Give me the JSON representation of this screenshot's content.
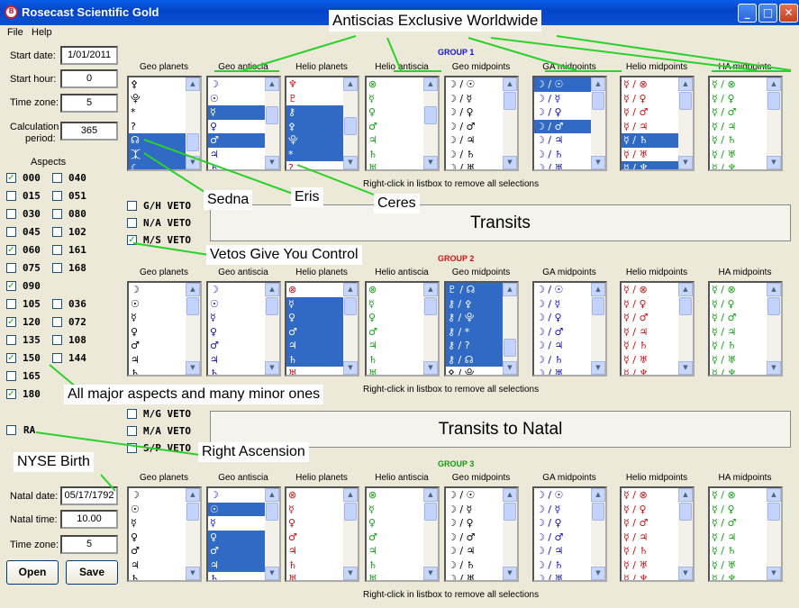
{
  "window": {
    "title": "Rosecast Scientific Gold",
    "icon_glyph": "8"
  },
  "menu": [
    {
      "label": "File"
    },
    {
      "label": "Help"
    }
  ],
  "left_panel": {
    "start_date_label": "Start date:",
    "start_date": "1/01/2011",
    "start_hour_label": "Start hour:",
    "start_hour": "0",
    "time_zone_label": "Time zone:",
    "time_zone": "5",
    "calc_period_label_1": "Calculation",
    "calc_period_label_2": "period:",
    "calc_period": "365",
    "aspects_label": "Aspects",
    "aspects": [
      {
        "label": "000",
        "checked": true
      },
      {
        "label": "040",
        "checked": false
      },
      {
        "label": "015",
        "checked": false
      },
      {
        "label": "051",
        "checked": false
      },
      {
        "label": "030",
        "checked": false
      },
      {
        "label": "080",
        "checked": false
      },
      {
        "label": "045",
        "checked": false
      },
      {
        "label": "102",
        "checked": false
      },
      {
        "label": "060",
        "checked": true
      },
      {
        "label": "161",
        "checked": false
      },
      {
        "label": "075",
        "checked": false
      },
      {
        "label": "168",
        "checked": false
      },
      {
        "label": "090",
        "checked": true
      },
      {
        "label": "",
        "checked": null
      },
      {
        "label": "105",
        "checked": false
      },
      {
        "label": "036",
        "checked": false
      },
      {
        "label": "120",
        "checked": true
      },
      {
        "label": "072",
        "checked": false
      },
      {
        "label": "135",
        "checked": false
      },
      {
        "label": "108",
        "checked": false
      },
      {
        "label": "150",
        "checked": true
      },
      {
        "label": "144",
        "checked": false
      },
      {
        "label": "165",
        "checked": false
      },
      {
        "label": "",
        "checked": null
      },
      {
        "label": "180",
        "checked": true
      },
      {
        "label": "",
        "checked": null
      }
    ],
    "ra_label": "RA",
    "ra_checked": false,
    "natal_date_label": "Natal date:",
    "natal_date": "05/17/1792",
    "natal_time_label": "Natal time:",
    "natal_time": "10.00",
    "natal_tz_label": "Time zone:",
    "natal_tz": "5",
    "open_label": "Open",
    "save_label": "Save"
  },
  "columns": [
    "Geo planets",
    "Geo antiscia",
    "Helio planets",
    "Helio antiscia",
    "Geo midpoints",
    "GA midpoints",
    "Helio midpoints",
    "HA midpoints"
  ],
  "groups": [
    {
      "title": "GROUP 1",
      "title_color": "#1414d4",
      "lists": [
        {
          "color": "#000000",
          "items": [
            "⚴",
            "⯓",
            "*",
            "?",
            "☊",
            "⯰",
            "☾"
          ],
          "selected": [
            4,
            5,
            6
          ],
          "thumb": "bottom"
        },
        {
          "color": "#1010c0",
          "items": [
            "☽",
            "☉",
            "☿",
            "♀",
            "♂",
            "♃",
            "♄"
          ],
          "selected": [
            2,
            4
          ],
          "thumb": "mid"
        },
        {
          "color": "#c81010",
          "items": [
            "♆",
            "♇",
            "⚷",
            "⚴",
            "⯓",
            "*",
            "?"
          ],
          "selected": [
            2,
            3,
            4,
            5
          ],
          "thumb": "mid2"
        },
        {
          "color": "#10a010",
          "items": [
            "⊗",
            "☿",
            "♀",
            "♂",
            "♃",
            "♄",
            "♅"
          ],
          "selected": [],
          "thumb": "mid"
        },
        {
          "color": "#000000",
          "items": [
            "☽ / ☉",
            "☽ / ☿",
            "☽ / ♀",
            "☽ / ♂",
            "☽ / ♃",
            "☽ / ♄",
            "☽ / ♅"
          ],
          "selected": [],
          "thumb": "top"
        },
        {
          "color": "#1010c0",
          "items": [
            "☽ / ☉",
            "☽ / ☿",
            "☽ / ♀",
            "☽ / ♂",
            "☽ / ♃",
            "☽ / ♄",
            "☽ / ♅"
          ],
          "selected": [
            0,
            3
          ],
          "thumb": "top"
        },
        {
          "color": "#c81010",
          "items": [
            "☿ / ⊗",
            "☿ / ♀",
            "☿ / ♂",
            "☿ / ♃",
            "☿ / ♄",
            "☿ / ♅",
            "☿ / ♆"
          ],
          "selected": [
            4,
            6
          ],
          "thumb": "top"
        },
        {
          "color": "#10a010",
          "items": [
            "☿ / ⊗",
            "☿ / ♀",
            "☿ / ♂",
            "☿ / ♃",
            "☿ / ♄",
            "☿ / ♅",
            "☿ / ♆"
          ],
          "selected": [],
          "thumb": "top"
        }
      ],
      "note": "Right-click in listbox to remove all selections",
      "vetoes": [
        {
          "label": "G/H VETO",
          "checked": false
        },
        {
          "label": "N/A VETO",
          "checked": false
        },
        {
          "label": "M/S VETO",
          "checked": true
        }
      ],
      "action_label": "Transits"
    },
    {
      "title": "GROUP 2",
      "title_color": "#d41414",
      "lists": [
        {
          "color": "#000000",
          "items": [
            "☽",
            "☉",
            "☿",
            "♀",
            "♂",
            "♃",
            "♄"
          ],
          "selected": [],
          "thumb": "top"
        },
        {
          "color": "#1010c0",
          "items": [
            "☽",
            "☉",
            "☿",
            "♀",
            "♂",
            "♃",
            "♄"
          ],
          "selected": [],
          "thumb": "top"
        },
        {
          "color": "#c81010",
          "items": [
            "⊗",
            "☿",
            "♀",
            "♂",
            "♃",
            "♄",
            "♅"
          ],
          "selected": [
            1,
            2,
            3,
            4,
            5
          ],
          "thumb": "top"
        },
        {
          "color": "#10a010",
          "items": [
            "⊗",
            "☿",
            "♀",
            "♂",
            "♃",
            "♄",
            "♅"
          ],
          "selected": [],
          "thumb": "top"
        },
        {
          "color": "#000000",
          "items": [
            "♇ / ☊",
            "⚷ / ⚴",
            "⚷ / ⯓",
            "⚷ / *",
            "⚷ / ?",
            "⚷ / ☊",
            "⚴ / ⯓"
          ],
          "selected": [
            0,
            1,
            2,
            3,
            4,
            5
          ],
          "thumb": "bottom"
        },
        {
          "color": "#1010c0",
          "items": [
            "☽ / ☉",
            "☽ / ☿",
            "☽ / ♀",
            "☽ / ♂",
            "☽ / ♃",
            "☽ / ♄",
            "☽ / ♅"
          ],
          "selected": [],
          "thumb": "top"
        },
        {
          "color": "#c81010",
          "items": [
            "☿ / ⊗",
            "☿ / ♀",
            "☿ / ♂",
            "☿ / ♃",
            "☿ / ♄",
            "☿ / ♅",
            "☿ / ♆"
          ],
          "selected": [],
          "thumb": "top"
        },
        {
          "color": "#10a010",
          "items": [
            "☿ / ⊗",
            "☿ / ♀",
            "☿ / ♂",
            "☿ / ♃",
            "☿ / ♄",
            "☿ / ♅",
            "☿ / ♆"
          ],
          "selected": [],
          "thumb": "top"
        }
      ],
      "note": "Right-click in listbox to remove all selections",
      "vetoes": [
        {
          "label": "M/G VETO",
          "checked": false
        },
        {
          "label": "M/A VETO",
          "checked": false
        },
        {
          "label": "S/P VETO",
          "checked": false
        }
      ],
      "action_label": "Transits to Natal"
    },
    {
      "title": "GROUP 3",
      "title_color": "#10a010",
      "lists": [
        {
          "color": "#000000",
          "items": [
            "☽",
            "☉",
            "☿",
            "♀",
            "♂",
            "♃",
            "♄"
          ],
          "selected": [],
          "thumb": "top"
        },
        {
          "color": "#1010c0",
          "items": [
            "☽",
            "☉",
            "☿",
            "♀",
            "♂",
            "♃",
            "♄"
          ],
          "selected": [
            1,
            3,
            4,
            5
          ],
          "thumb": "top"
        },
        {
          "color": "#c81010",
          "items": [
            "⊗",
            "☿",
            "♀",
            "♂",
            "♃",
            "♄",
            "♅"
          ],
          "selected": [],
          "thumb": "top"
        },
        {
          "color": "#10a010",
          "items": [
            "⊗",
            "☿",
            "♀",
            "♂",
            "♃",
            "♄",
            "♅"
          ],
          "selected": [],
          "thumb": "top"
        },
        {
          "color": "#000000",
          "items": [
            "☽ / ☉",
            "☽ / ☿",
            "☽ / ♀",
            "☽ / ♂",
            "☽ / ♃",
            "☽ / ♄",
            "☽ / ♅"
          ],
          "selected": [],
          "thumb": "top"
        },
        {
          "color": "#1010c0",
          "items": [
            "☽ / ☉",
            "☽ / ☿",
            "☽ / ♀",
            "☽ / ♂",
            "☽ / ♃",
            "☽ / ♄",
            "☽ / ♅"
          ],
          "selected": [],
          "thumb": "top"
        },
        {
          "color": "#c81010",
          "items": [
            "☿ / ⊗",
            "☿ / ♀",
            "☿ / ♂",
            "☿ / ♃",
            "☿ / ♄",
            "☿ / ♅",
            "☿ / ♆"
          ],
          "selected": [],
          "thumb": "top"
        },
        {
          "color": "#10a010",
          "items": [
            "☿ / ⊗",
            "☿ / ♀",
            "☿ / ♂",
            "☿ / ♃",
            "☿ / ♄",
            "☿ / ♅",
            "☿ / ♆"
          ],
          "selected": [],
          "thumb": "top"
        }
      ],
      "note": "Right-click in listbox to remove all selections"
    }
  ],
  "annotations": {
    "antiscias": "Antiscias Exclusive Worldwide",
    "sedna": "Sedna",
    "eris": "Eris",
    "ceres": "Ceres",
    "vetos": "Vetos Give You Control",
    "aspects": "All major aspects and many minor ones",
    "ra": "Right Ascension",
    "nyse": "NYSE Birth"
  },
  "annotation_line_color": "#2bd12b"
}
